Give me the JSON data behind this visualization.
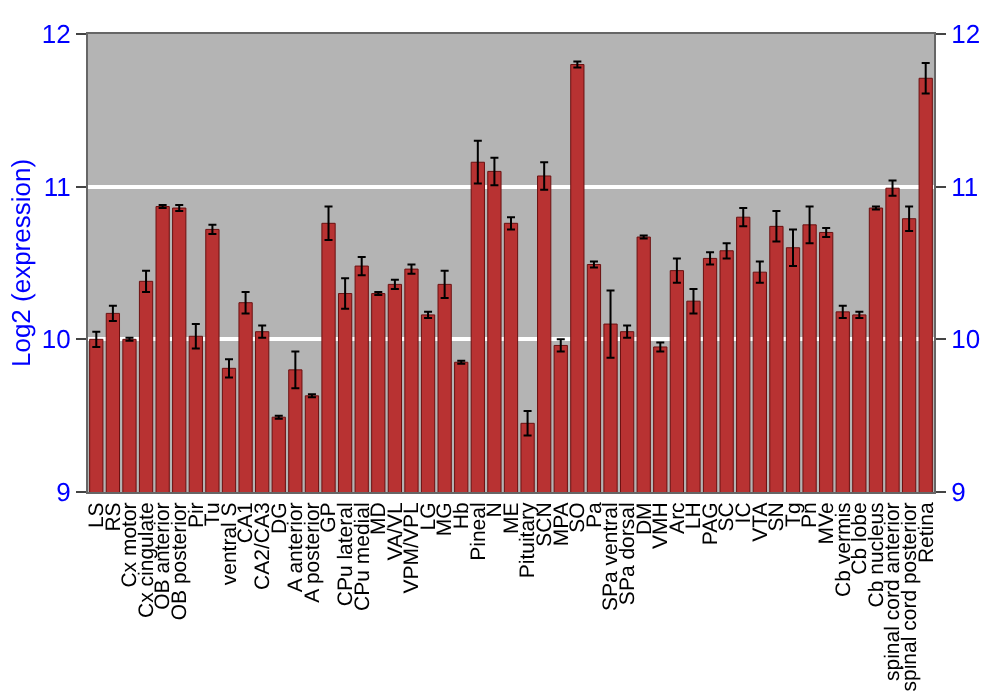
{
  "chart_data": {
    "type": "bar",
    "ylabel": "Log2 (expression)",
    "categories": [
      "LS",
      "RS",
      "Cx motor",
      "Cx cingulate",
      "OB anterior",
      "OB posterior",
      "Pir",
      "Tu",
      "ventral S",
      "CA1",
      "CA2/CA3",
      "DG",
      "A anterior",
      "A posterior",
      "GP",
      "CPu lateral",
      "CPu medial",
      "MD",
      "VA/VL",
      "VPM/VPL",
      "LG",
      "MG",
      "Hb",
      "Pineal",
      "N",
      "ME",
      "Pituitary",
      "SCN",
      "MPA",
      "SO",
      "Pa",
      "SPa ventral",
      "SPa dorsal",
      "DM",
      "VMH",
      "Arc",
      "LH",
      "PAG",
      "SC",
      "IC",
      "VTA",
      "SN",
      "Tg",
      "Pn",
      "MVe",
      "Cb vermis",
      "Cb lobe",
      "Cb nucleus",
      "spinal cord anterior",
      "spinal cord posterior",
      "Retina"
    ],
    "values": [
      10.0,
      10.17,
      10.0,
      10.38,
      10.87,
      10.86,
      10.02,
      10.72,
      9.81,
      10.24,
      10.05,
      9.49,
      9.8,
      9.63,
      10.76,
      10.3,
      10.48,
      10.3,
      10.36,
      10.46,
      10.16,
      10.36,
      9.85,
      11.16,
      11.1,
      10.76,
      9.45,
      11.07,
      9.96,
      11.8,
      10.49,
      10.1,
      10.05,
      10.67,
      9.95,
      10.45,
      10.25,
      10.53,
      10.58,
      10.8,
      10.44,
      10.74,
      10.6,
      10.75,
      10.7,
      10.18,
      10.16,
      10.86,
      10.99,
      10.79,
      11.71
    ],
    "errors": [
      0.05,
      0.05,
      0.01,
      0.07,
      0.01,
      0.02,
      0.08,
      0.03,
      0.06,
      0.07,
      0.04,
      0.01,
      0.12,
      0.01,
      0.11,
      0.1,
      0.06,
      0.01,
      0.03,
      0.03,
      0.02,
      0.09,
      0.01,
      0.14,
      0.09,
      0.04,
      0.08,
      0.09,
      0.04,
      0.02,
      0.02,
      0.22,
      0.04,
      0.01,
      0.03,
      0.08,
      0.08,
      0.04,
      0.05,
      0.06,
      0.07,
      0.1,
      0.12,
      0.12,
      0.03,
      0.04,
      0.02,
      0.01,
      0.05,
      0.08,
      0.1
    ],
    "color": "#b83232",
    "ylim": [
      9,
      12
    ],
    "yticks": [
      9,
      10,
      11,
      12
    ],
    "y2lim": [
      9,
      12
    ],
    "y2ticks": [
      9,
      10,
      11,
      12
    ],
    "grid": "y"
  }
}
